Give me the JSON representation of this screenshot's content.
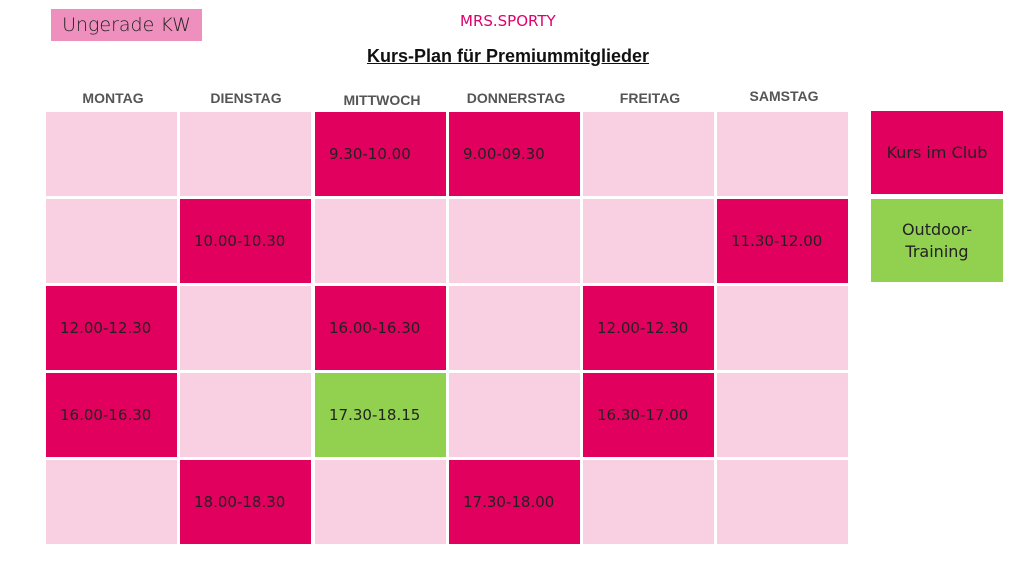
{
  "week_label": "Ungerade KW",
  "brand": "MRS.SPORTY",
  "title": "Kurs-Plan für Premiummitglieder",
  "days": [
    "MONTAG",
    "DIENSTAG",
    "MITTWOCH",
    "DONNERSTAG",
    "FREITAG",
    "SAMSTAG"
  ],
  "colors": {
    "club": "#e2005f",
    "outdoor": "#92d050",
    "empty": "#f8d0e2",
    "badge": "#ef8fbd"
  },
  "legend": {
    "club": "Kurs im Club",
    "outdoor": "Outdoor-\nTraining"
  },
  "schedule": [
    [
      {
        "time": "",
        "type": "empty"
      },
      {
        "time": "",
        "type": "empty"
      },
      {
        "time": "9.30-10.00",
        "type": "club"
      },
      {
        "time": "9.00-09.30",
        "type": "club"
      },
      {
        "time": "",
        "type": "empty"
      },
      {
        "time": "",
        "type": "empty"
      }
    ],
    [
      {
        "time": "",
        "type": "empty"
      },
      {
        "time": "10.00-10.30",
        "type": "club"
      },
      {
        "time": "",
        "type": "empty"
      },
      {
        "time": "",
        "type": "empty"
      },
      {
        "time": "",
        "type": "empty"
      },
      {
        "time": "11.30-12.00",
        "type": "club"
      }
    ],
    [
      {
        "time": "12.00-12.30",
        "type": "club"
      },
      {
        "time": "",
        "type": "empty"
      },
      {
        "time": "16.00-16.30",
        "type": "club"
      },
      {
        "time": "",
        "type": "empty"
      },
      {
        "time": "12.00-12.30",
        "type": "club"
      },
      {
        "time": "",
        "type": "empty"
      }
    ],
    [
      {
        "time": "16.00-16.30",
        "type": "club"
      },
      {
        "time": "",
        "type": "empty"
      },
      {
        "time": "17.30-18.15",
        "type": "outdoor"
      },
      {
        "time": "",
        "type": "empty"
      },
      {
        "time": "16.30-17.00",
        "type": "club"
      },
      {
        "time": "",
        "type": "empty"
      }
    ],
    [
      {
        "time": "",
        "type": "empty"
      },
      {
        "time": "18.00-18.30",
        "type": "club"
      },
      {
        "time": "",
        "type": "empty"
      },
      {
        "time": "17.30-18.00",
        "type": "club"
      },
      {
        "time": "",
        "type": "empty"
      },
      {
        "time": "",
        "type": "empty"
      }
    ]
  ]
}
